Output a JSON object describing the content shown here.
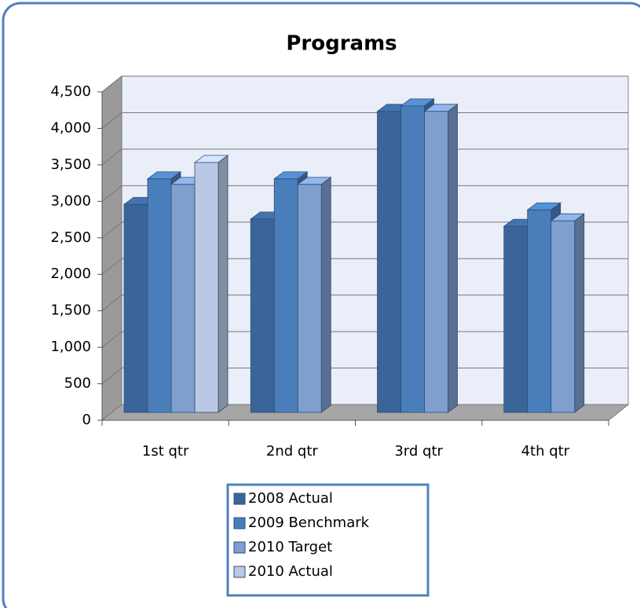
{
  "chart_data": {
    "type": "bar3d",
    "title": "Programs",
    "categories": [
      "1st qtr",
      "2nd qtr",
      "3rd qtr",
      "4th qtr"
    ],
    "series": [
      {
        "name": "2008 Actual",
        "color": "#3b6598",
        "values": [
          2850,
          2650,
          4125,
          2550
        ]
      },
      {
        "name": "2009 Benchmark",
        "color": "#4a7ebb",
        "values": [
          3200,
          3200,
          4200,
          2775
        ]
      },
      {
        "name": "2010 Target",
        "color": "#7f9fcf",
        "values": [
          3125,
          3125,
          4125,
          2625
        ]
      },
      {
        "name": "2010 Actual",
        "color": "#b9c9e4",
        "values": [
          3425,
          null,
          null,
          null
        ]
      }
    ],
    "ylim": [
      0,
      4500
    ],
    "yticks": [
      0,
      {
        "value": 500,
        "label": "500"
      },
      {
        "value": 1000,
        "label": "1,000"
      },
      {
        "value": 1500,
        "label": "1,500"
      },
      {
        "value": 2000,
        "label": "2,000"
      },
      {
        "value": 2500,
        "label": "2,500"
      },
      {
        "value": 3000,
        "label": "3,000"
      },
      {
        "value": 3500,
        "label": "3,500"
      },
      {
        "value": 4000,
        "label": "4,000"
      },
      {
        "value": 4500,
        "label": "4,500"
      }
    ],
    "grid": true,
    "legend": "bottom"
  }
}
